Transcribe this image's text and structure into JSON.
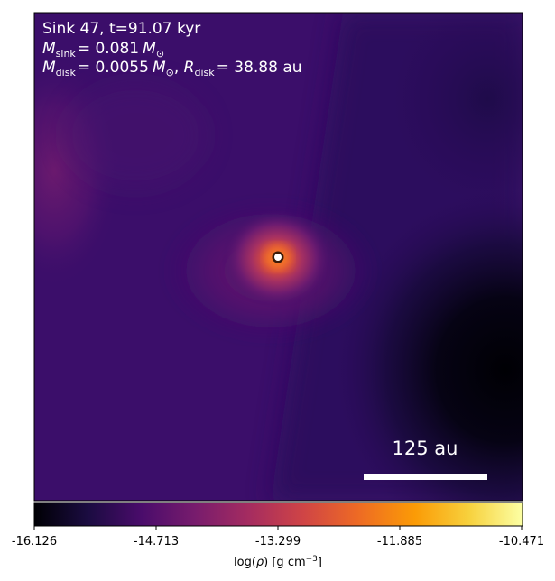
{
  "annotation": {
    "line1": "Sink 47, t=91.07 kyr",
    "line2": {
      "mass_symbol": "M",
      "mass_subscript": "sink",
      "value": "= 0.081",
      "unit_symbol": "M",
      "unit_subscript": "⊙"
    },
    "line3": {
      "mass_symbol": "M",
      "mass_subscript": "disk",
      "value": "= 0.0055",
      "unit_symbol": "M",
      "unit_subscript": "⊙",
      "separator": ", ",
      "radius_symbol": "R",
      "radius_subscript": "disk",
      "radius_value": "= 38.88 au"
    }
  },
  "scale_bar": {
    "label": "125 au"
  },
  "colorbar": {
    "ticks": [
      "-16.126",
      "-14.713",
      "-13.299",
      "-11.885",
      "-10.471"
    ],
    "label": {
      "prefix": "log(",
      "symbol": "ρ",
      "suffix": ") [g cm",
      "exponent": "−3",
      "close": "]"
    },
    "colormap": "inferno",
    "colors": {
      "c0": "#000004",
      "c1": "#1b0c41",
      "c2": "#4a0c6b",
      "c3": "#781c6d",
      "c4": "#a52c60",
      "c5": "#cf4446",
      "c6": "#ed6925",
      "c7": "#fb9b06",
      "c8": "#f7d13d",
      "c9": "#fcffa4"
    }
  },
  "colors": {
    "text": "#ffffff",
    "sink_marker_fill": "#ffffff",
    "sink_marker_ring": "#3a1a08",
    "background_base": "#3b0e6a"
  }
}
